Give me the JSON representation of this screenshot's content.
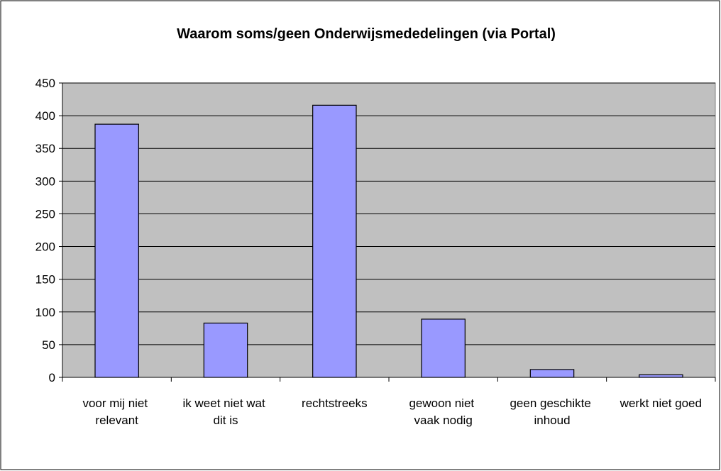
{
  "chart_data": {
    "type": "bar",
    "title": "Waarom soms/geen Onderwijsmededelingen (via Portal)",
    "categories": [
      "voor mij niet relevant",
      "ik weet niet wat dit is",
      "rechtstreeks",
      "gewoon niet vaak nodig",
      "geen geschikte inhoud",
      "werkt niet goed"
    ],
    "values": [
      387,
      83,
      416,
      89,
      12,
      4
    ],
    "color": "#9999ff",
    "ylim": [
      0,
      450
    ],
    "yticks": [
      0,
      50,
      100,
      150,
      200,
      250,
      300,
      350,
      400,
      450
    ],
    "grid": true
  }
}
